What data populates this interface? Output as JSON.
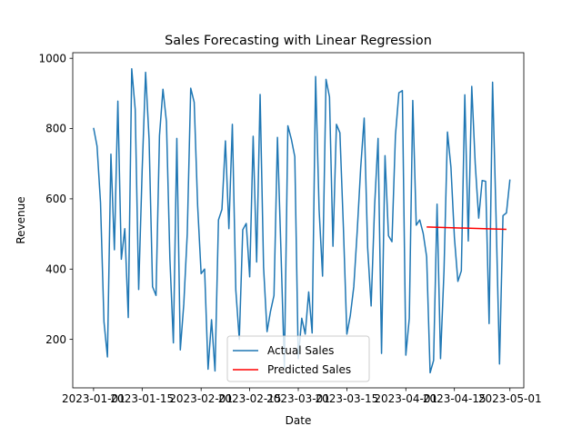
{
  "chart_data": {
    "type": "line",
    "title": "Sales Forecasting with Linear Regression",
    "xlabel": "Date",
    "ylabel": "Revenue",
    "xlim": [
      "2022-12-26",
      "2023-05-05"
    ],
    "ylim": [
      62,
      1016
    ],
    "x_ticks": [
      "2023-01-01",
      "2023-01-15",
      "2023-02-01",
      "2023-02-15",
      "2023-03-01",
      "2023-03-15",
      "2023-04-01",
      "2023-04-15",
      "2023-05-01"
    ],
    "y_ticks": [
      200,
      400,
      600,
      800,
      1000
    ],
    "legend_position": "lower center",
    "colors": {
      "actual": "#1f77b4",
      "predicted": "#ff0000"
    },
    "series": [
      {
        "name": "Actual Sales",
        "start_date": "2023-01-01",
        "step_days": 1,
        "values": [
          802,
          750,
          590,
          250,
          150,
          727,
          455,
          878,
          428,
          515,
          262,
          970,
          855,
          342,
          680,
          960,
          770,
          350,
          325,
          780,
          912,
          820,
          430,
          190,
          772,
          170,
          300,
          500,
          915,
          875,
          580,
          387,
          400,
          115,
          256,
          110,
          540,
          570,
          765,
          515,
          812,
          340,
          200,
          512,
          530,
          378,
          778,
          420,
          897,
          405,
          222,
          280,
          325,
          775,
          455,
          120,
          808,
          770,
          720,
          145,
          260,
          215,
          335,
          218,
          948,
          570,
          380,
          940,
          890,
          465,
          812,
          788,
          520,
          215,
          268,
          350,
          510,
          690,
          830,
          460,
          295,
          580,
          772,
          160,
          723,
          495,
          478,
          780,
          902,
          908,
          155,
          260,
          880,
          525,
          540,
          502,
          435,
          105,
          140,
          585,
          145,
          395,
          790,
          690,
          490,
          365,
          395,
          896,
          480,
          920,
          700,
          545,
          652,
          650,
          245,
          932,
          550,
          130,
          552,
          560,
          655
        ]
      },
      {
        "name": "Predicted Sales",
        "dates": [
          "2023-04-07",
          "2023-04-30"
        ],
        "values": [
          520,
          513
        ]
      }
    ]
  }
}
